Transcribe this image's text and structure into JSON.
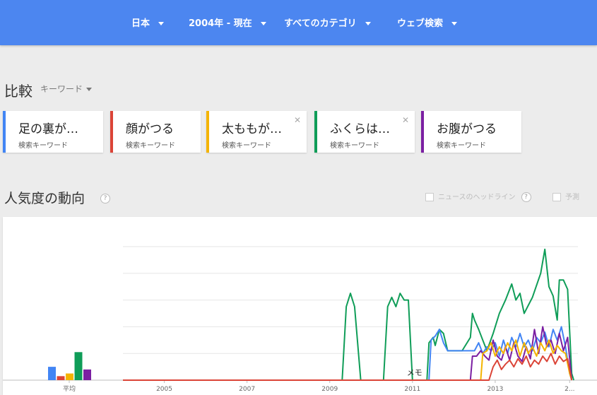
{
  "filters": [
    {
      "label": "日本"
    },
    {
      "label": "2004年 - 現在"
    },
    {
      "label": "すべてのカテゴリ"
    },
    {
      "label": "ウェブ検索"
    }
  ],
  "compare": {
    "title": "比較",
    "type_label": "キーワード"
  },
  "keywords": [
    {
      "term": "足の裏が…",
      "sub": "検索キーワード",
      "color": "#4285f4",
      "closable": false
    },
    {
      "term": "顔がつる",
      "sub": "検索キーワード",
      "color": "#db4437",
      "closable": false
    },
    {
      "term": "太ももが…",
      "sub": "検索キーワード",
      "color": "#f4b400",
      "closable": true
    },
    {
      "term": "ふくらは…",
      "sub": "検索キーワード",
      "color": "#0f9d58",
      "closable": true
    },
    {
      "term": "お腹がつる",
      "sub": "検索キーワード",
      "color": "#7b1fa2",
      "closable": false
    }
  ],
  "popularity": {
    "title": "人気度の動向",
    "help": "?",
    "news_label": "ニュースのヘッドライン",
    "forecast_label": "予測"
  },
  "chart_data": {
    "type": "line",
    "average_label": "平均",
    "averages": [
      {
        "series": "足の裏が…",
        "value": 10
      },
      {
        "series": "顔がつる",
        "value": 3
      },
      {
        "series": "太ももが…",
        "value": 5
      },
      {
        "series": "ふくらは…",
        "value": 21
      },
      {
        "series": "お腹がつる",
        "value": 8
      }
    ],
    "x_ticks": [
      "2005",
      "2007",
      "2009",
      "2011",
      "2013",
      "2..."
    ],
    "annotation": "メモ",
    "ylim": [
      0,
      100
    ],
    "grid": true,
    "series": [
      {
        "name": "ふくらは…",
        "color": "#0f9d58",
        "points": [
          [
            2004.0,
            0
          ],
          [
            2009.3,
            0
          ],
          [
            2009.4,
            55
          ],
          [
            2009.5,
            65
          ],
          [
            2009.6,
            55
          ],
          [
            2009.75,
            0
          ],
          [
            2010.3,
            0
          ],
          [
            2010.4,
            55
          ],
          [
            2010.5,
            62
          ],
          [
            2010.6,
            55
          ],
          [
            2010.7,
            65
          ],
          [
            2010.8,
            60
          ],
          [
            2010.9,
            60
          ],
          [
            2011.0,
            0
          ],
          [
            2011.35,
            0
          ],
          [
            2011.4,
            28
          ],
          [
            2011.5,
            32
          ],
          [
            2011.55,
            26
          ],
          [
            2011.65,
            38
          ],
          [
            2011.75,
            35
          ],
          [
            2011.85,
            22
          ],
          [
            2012.2,
            22
          ],
          [
            2012.4,
            32
          ],
          [
            2012.45,
            50
          ],
          [
            2012.5,
            45
          ],
          [
            2012.6,
            38
          ],
          [
            2012.7,
            30
          ],
          [
            2012.8,
            22
          ],
          [
            2012.95,
            35
          ],
          [
            2013.1,
            50
          ],
          [
            2013.25,
            60
          ],
          [
            2013.4,
            72
          ],
          [
            2013.5,
            60
          ],
          [
            2013.6,
            65
          ],
          [
            2013.7,
            50
          ],
          [
            2013.9,
            62
          ],
          [
            2014.1,
            80
          ],
          [
            2014.2,
            98
          ],
          [
            2014.3,
            70
          ],
          [
            2014.4,
            63
          ],
          [
            2014.5,
            45
          ],
          [
            2014.55,
            75
          ],
          [
            2014.65,
            75
          ],
          [
            2014.75,
            68
          ],
          [
            2014.85,
            5
          ],
          [
            2014.9,
            0
          ]
        ]
      },
      {
        "name": "足の裏が…",
        "color": "#4285f4",
        "points": [
          [
            2004.0,
            0
          ],
          [
            2011.4,
            0
          ],
          [
            2011.45,
            30
          ],
          [
            2011.55,
            33
          ],
          [
            2011.65,
            38
          ],
          [
            2011.75,
            28
          ],
          [
            2011.85,
            22
          ],
          [
            2012.5,
            22
          ],
          [
            2012.6,
            28
          ],
          [
            2012.7,
            20
          ],
          [
            2012.8,
            25
          ],
          [
            2012.9,
            22
          ],
          [
            2013.0,
            28
          ],
          [
            2013.1,
            18
          ],
          [
            2013.2,
            30
          ],
          [
            2013.3,
            20
          ],
          [
            2013.4,
            32
          ],
          [
            2013.5,
            25
          ],
          [
            2013.6,
            35
          ],
          [
            2013.7,
            25
          ],
          [
            2013.8,
            30
          ],
          [
            2013.9,
            22
          ],
          [
            2014.0,
            32
          ],
          [
            2014.1,
            28
          ],
          [
            2014.2,
            36
          ],
          [
            2014.3,
            25
          ],
          [
            2014.4,
            38
          ],
          [
            2014.5,
            30
          ],
          [
            2014.6,
            40
          ],
          [
            2014.7,
            25
          ],
          [
            2014.8,
            5
          ],
          [
            2014.85,
            0
          ]
        ]
      },
      {
        "name": "お腹がつる",
        "color": "#7b1fa2",
        "points": [
          [
            2004.0,
            0
          ],
          [
            2012.4,
            0
          ],
          [
            2012.45,
            18
          ],
          [
            2012.55,
            18
          ],
          [
            2012.65,
            22
          ],
          [
            2012.75,
            18
          ],
          [
            2012.85,
            15
          ],
          [
            2012.95,
            30
          ],
          [
            2013.05,
            18
          ],
          [
            2013.15,
            15
          ],
          [
            2013.25,
            25
          ],
          [
            2013.35,
            15
          ],
          [
            2013.45,
            28
          ],
          [
            2013.55,
            18
          ],
          [
            2013.65,
            14
          ],
          [
            2013.75,
            25
          ],
          [
            2013.85,
            16
          ],
          [
            2013.95,
            38
          ],
          [
            2014.05,
            20
          ],
          [
            2014.15,
            40
          ],
          [
            2014.25,
            25
          ],
          [
            2014.35,
            30
          ],
          [
            2014.45,
            20
          ],
          [
            2014.55,
            35
          ],
          [
            2014.65,
            22
          ],
          [
            2014.75,
            32
          ],
          [
            2014.85,
            0
          ]
        ]
      },
      {
        "name": "太ももが…",
        "color": "#f4b400",
        "points": [
          [
            2004.0,
            0
          ],
          [
            2012.65,
            0
          ],
          [
            2012.7,
            20
          ],
          [
            2012.8,
            22
          ],
          [
            2012.9,
            28
          ],
          [
            2013.0,
            18
          ],
          [
            2013.1,
            25
          ],
          [
            2013.2,
            20
          ],
          [
            2013.3,
            28
          ],
          [
            2013.4,
            22
          ],
          [
            2013.5,
            30
          ],
          [
            2013.6,
            18
          ],
          [
            2013.7,
            28
          ],
          [
            2013.8,
            20
          ],
          [
            2013.9,
            25
          ],
          [
            2014.0,
            18
          ],
          [
            2014.1,
            28
          ],
          [
            2014.2,
            22
          ],
          [
            2014.3,
            30
          ],
          [
            2014.4,
            20
          ],
          [
            2014.5,
            26
          ],
          [
            2014.6,
            22
          ],
          [
            2014.7,
            20
          ],
          [
            2014.8,
            5
          ],
          [
            2014.85,
            0
          ]
        ]
      },
      {
        "name": "顔がつる",
        "color": "#db4437",
        "points": [
          [
            2004.0,
            0
          ],
          [
            2012.85,
            0
          ],
          [
            2012.95,
            10
          ],
          [
            2013.05,
            15
          ],
          [
            2013.15,
            8
          ],
          [
            2013.25,
            12
          ],
          [
            2013.35,
            15
          ],
          [
            2013.45,
            10
          ],
          [
            2013.55,
            16
          ],
          [
            2013.65,
            12
          ],
          [
            2013.75,
            18
          ],
          [
            2013.85,
            10
          ],
          [
            2013.95,
            15
          ],
          [
            2014.05,
            12
          ],
          [
            2014.15,
            18
          ],
          [
            2014.25,
            14
          ],
          [
            2014.35,
            20
          ],
          [
            2014.45,
            12
          ],
          [
            2014.55,
            18
          ],
          [
            2014.65,
            14
          ],
          [
            2014.75,
            16
          ],
          [
            2014.85,
            0
          ]
        ]
      }
    ]
  }
}
